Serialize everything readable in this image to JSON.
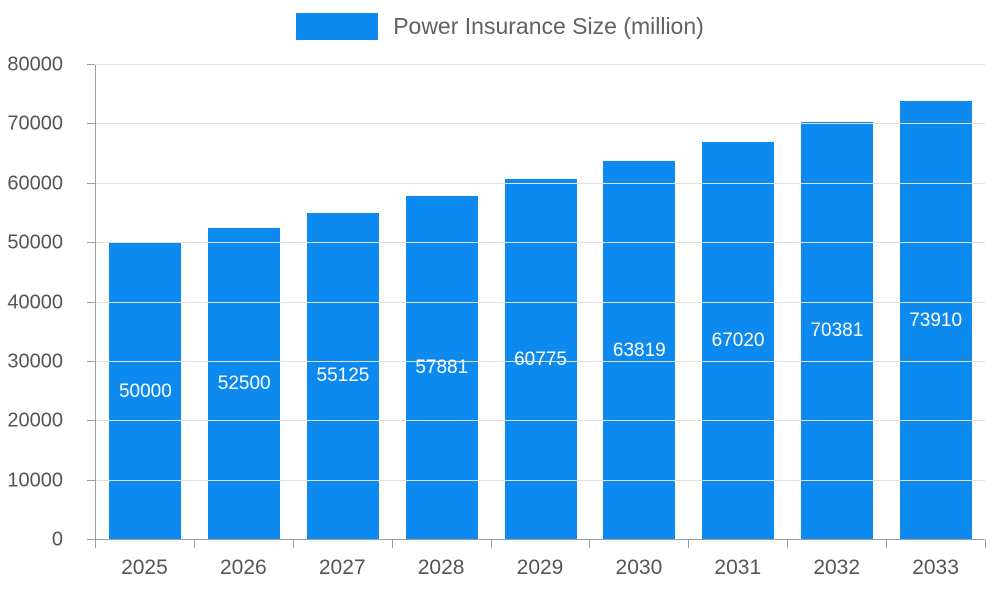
{
  "legend": {
    "label": "Power Insurance Size (million)"
  },
  "chart_data": {
    "type": "bar",
    "title": "Power Insurance Size (million)",
    "categories": [
      "2025",
      "2026",
      "2027",
      "2028",
      "2029",
      "2030",
      "2031",
      "2032",
      "2033"
    ],
    "values": [
      50000,
      52500,
      55125,
      57881,
      60775,
      63819,
      67020,
      70381,
      73910
    ],
    "xlabel": "",
    "ylabel": "",
    "ylim": [
      0,
      80000
    ],
    "yticks": [
      0,
      10000,
      20000,
      30000,
      40000,
      50000,
      60000,
      70000,
      80000
    ],
    "grid": true,
    "legend_position": "top-center",
    "bar_color": "#0d8af0",
    "value_label_color": "#ffffff",
    "axis_text_color": "#555555",
    "gridline_color": "#e0e0e0",
    "axis_line_color": "#9e9e9e"
  }
}
